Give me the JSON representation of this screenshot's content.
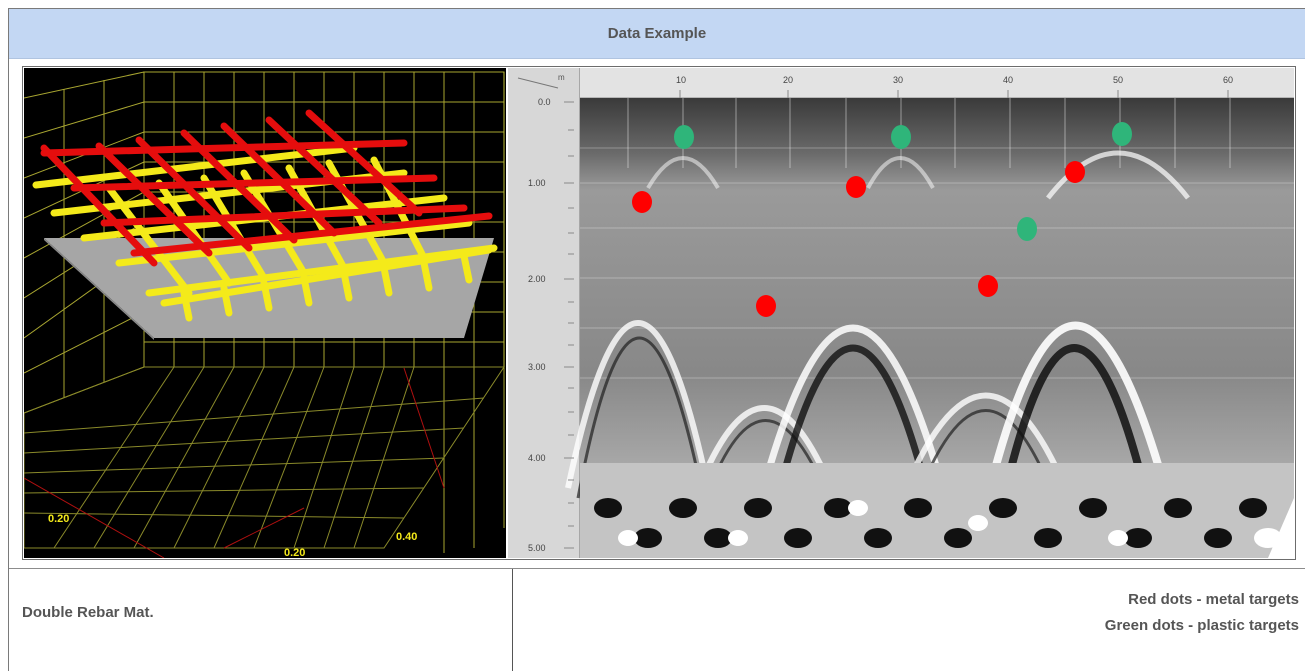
{
  "header": {
    "title": "Data Example"
  },
  "left_panel": {
    "axis_labels": [
      "0.20",
      "0.40",
      "0.20"
    ],
    "colors": {
      "top_bars": "#e50d0d",
      "bottom_bars": "#f4ea1a",
      "plane": "#a6a6a6",
      "grid": "#c7c43a"
    }
  },
  "right_panel": {
    "top_ticks": [
      "10",
      "20",
      "30",
      "40",
      "50",
      "60"
    ],
    "left_ticks": [
      "0.0",
      "1.00",
      "2.00",
      "3.00",
      "4.00",
      "5.00"
    ],
    "corner_label": "m",
    "colors": {
      "metal_dot": "#ff0000",
      "plastic_dot": "#2fb57a"
    }
  },
  "caption": {
    "left": "Double Rebar Mat.",
    "legend_red": "Red dots - metal targets",
    "legend_green": "Green dots - plastic targets"
  }
}
